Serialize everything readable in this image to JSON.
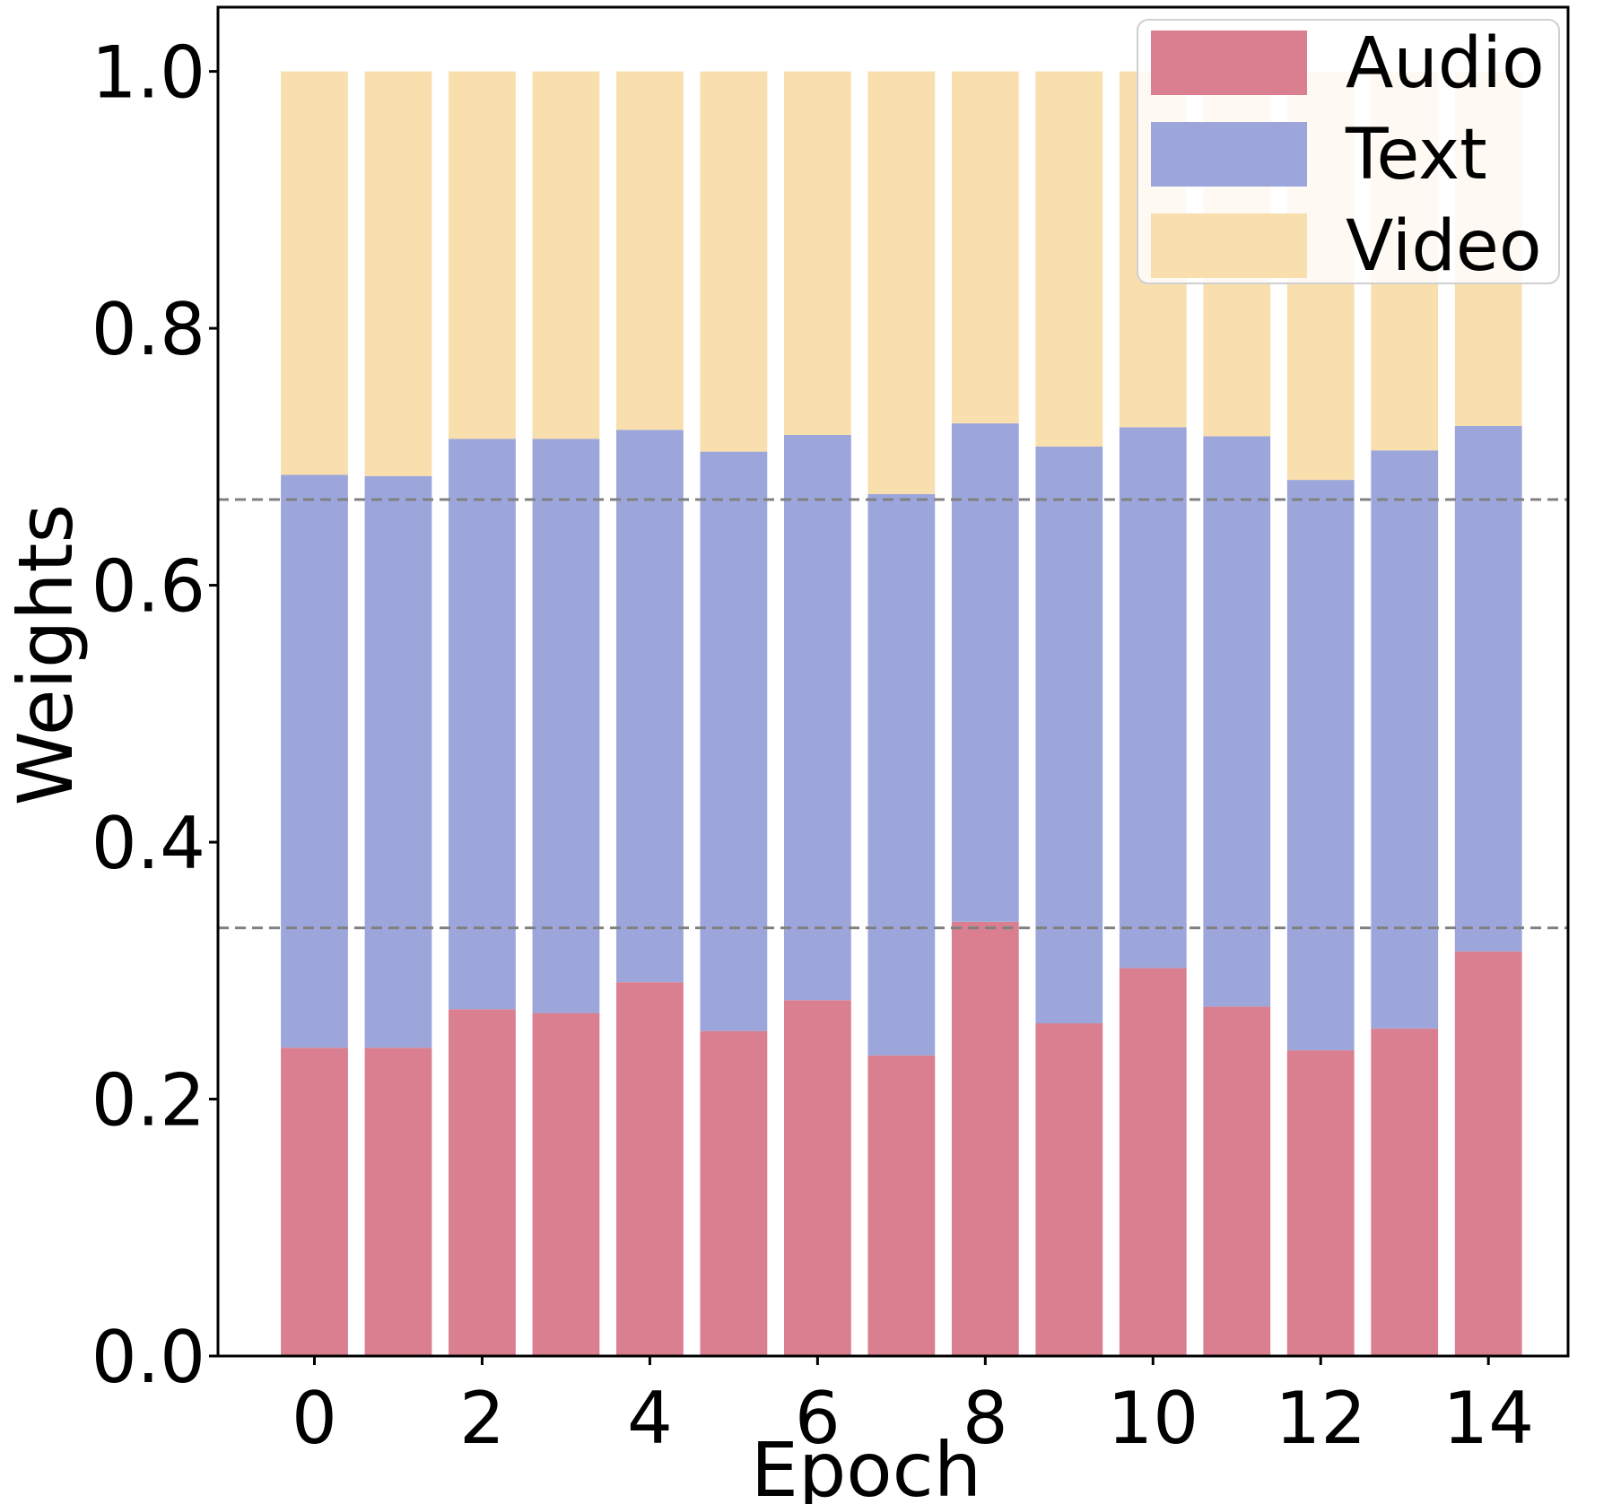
{
  "chart_data": {
    "type": "bar",
    "stacked": true,
    "title": "",
    "xlabel": "Epoch",
    "ylabel": "Weights",
    "x": [
      0,
      1,
      2,
      3,
      4,
      5,
      6,
      7,
      8,
      9,
      10,
      11,
      12,
      13,
      14
    ],
    "x_ticks": [
      "0",
      "2",
      "4",
      "6",
      "8",
      "10",
      "12",
      "14"
    ],
    "y_ticks": [
      "0.0",
      "0.2",
      "0.4",
      "0.6",
      "0.8",
      "1.0"
    ],
    "ylim": [
      0,
      1.05
    ],
    "xlim": [
      -1.15,
      14.95
    ],
    "grid": false,
    "legend_position": "top-right",
    "reference_lines": [
      0.3333,
      0.6667
    ],
    "series": [
      {
        "name": "Audio",
        "color": "#d97f8f",
        "values": [
          0.24,
          0.24,
          0.27,
          0.267,
          0.291,
          0.253,
          0.277,
          0.234,
          0.338,
          0.259,
          0.302,
          0.272,
          0.238,
          0.255,
          0.315
        ]
      },
      {
        "name": "Text",
        "color": "#9da6db",
        "values": [
          0.446,
          0.445,
          0.444,
          0.447,
          0.43,
          0.451,
          0.44,
          0.437,
          0.388,
          0.449,
          0.421,
          0.444,
          0.444,
          0.45,
          0.409
        ]
      },
      {
        "name": "Video",
        "color": "#f8dfad",
        "values": [
          0.314,
          0.315,
          0.286,
          0.286,
          0.279,
          0.296,
          0.283,
          0.329,
          0.274,
          0.292,
          0.277,
          0.284,
          0.318,
          0.295,
          0.276
        ]
      }
    ]
  }
}
